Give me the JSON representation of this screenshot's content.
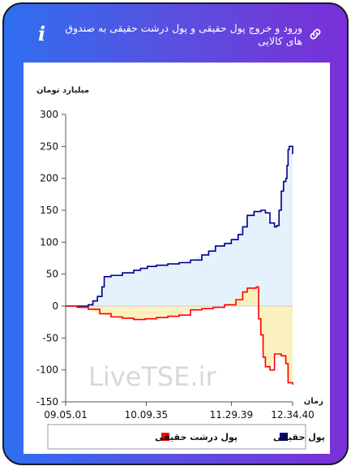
{
  "header": {
    "title": "ورود و خروج پول حقیقی و پول درشت حقیقی به صندوق های کالایی",
    "info_icon": "i"
  },
  "watermark": "LiveTSE.ir",
  "chart_data": {
    "type": "line",
    "ylabel": "میلیارد تومان",
    "xlabel": "زمان",
    "ylim": [
      -150,
      300
    ],
    "yticks": [
      300,
      250,
      200,
      150,
      100,
      50,
      0,
      -50,
      -100,
      -150
    ],
    "xticks": [
      "09.05.01",
      "10.09.35",
      "11.29.39",
      "12.34.40"
    ],
    "xtick_pos": [
      0,
      0.355,
      0.73,
      1.0
    ],
    "grid": false,
    "legend_position": "bottom",
    "series": [
      {
        "name": "پول حقیقی",
        "color": "#00008b",
        "fill": "#e6f2fb",
        "x": [
          0,
          0.03,
          0.07,
          0.1,
          0.12,
          0.14,
          0.16,
          0.17,
          0.2,
          0.25,
          0.3,
          0.33,
          0.36,
          0.4,
          0.45,
          0.5,
          0.55,
          0.6,
          0.63,
          0.66,
          0.7,
          0.73,
          0.76,
          0.78,
          0.8,
          0.83,
          0.86,
          0.88,
          0.9,
          0.92,
          0.93,
          0.94,
          0.95,
          0.96,
          0.97,
          0.975,
          0.98,
          0.985,
          1.0
        ],
        "values": [
          0,
          0,
          0,
          2,
          8,
          15,
          30,
          46,
          48,
          52,
          56,
          59,
          62,
          64,
          66,
          68,
          72,
          80,
          86,
          94,
          98,
          104,
          112,
          124,
          142,
          148,
          150,
          146,
          130,
          124,
          126,
          150,
          180,
          195,
          200,
          220,
          245,
          250,
          238
        ]
      },
      {
        "name": "پول درشت حقیقی",
        "color": "#ff0000",
        "fill": "#fbf1bf",
        "x": [
          0,
          0.05,
          0.1,
          0.15,
          0.2,
          0.25,
          0.3,
          0.35,
          0.4,
          0.45,
          0.5,
          0.55,
          0.6,
          0.65,
          0.7,
          0.75,
          0.78,
          0.8,
          0.82,
          0.84,
          0.85,
          0.86,
          0.87,
          0.88,
          0.9,
          0.92,
          0.95,
          0.97,
          0.98,
          1.0
        ],
        "values": [
          0,
          -2,
          -5,
          -12,
          -17,
          -19,
          -21,
          -20,
          -18,
          -16,
          -14,
          -6,
          -4,
          -2,
          2,
          10,
          22,
          28,
          28,
          30,
          -20,
          -45,
          -80,
          -95,
          -100,
          -75,
          -78,
          -90,
          -120,
          -123
        ]
      }
    ]
  }
}
